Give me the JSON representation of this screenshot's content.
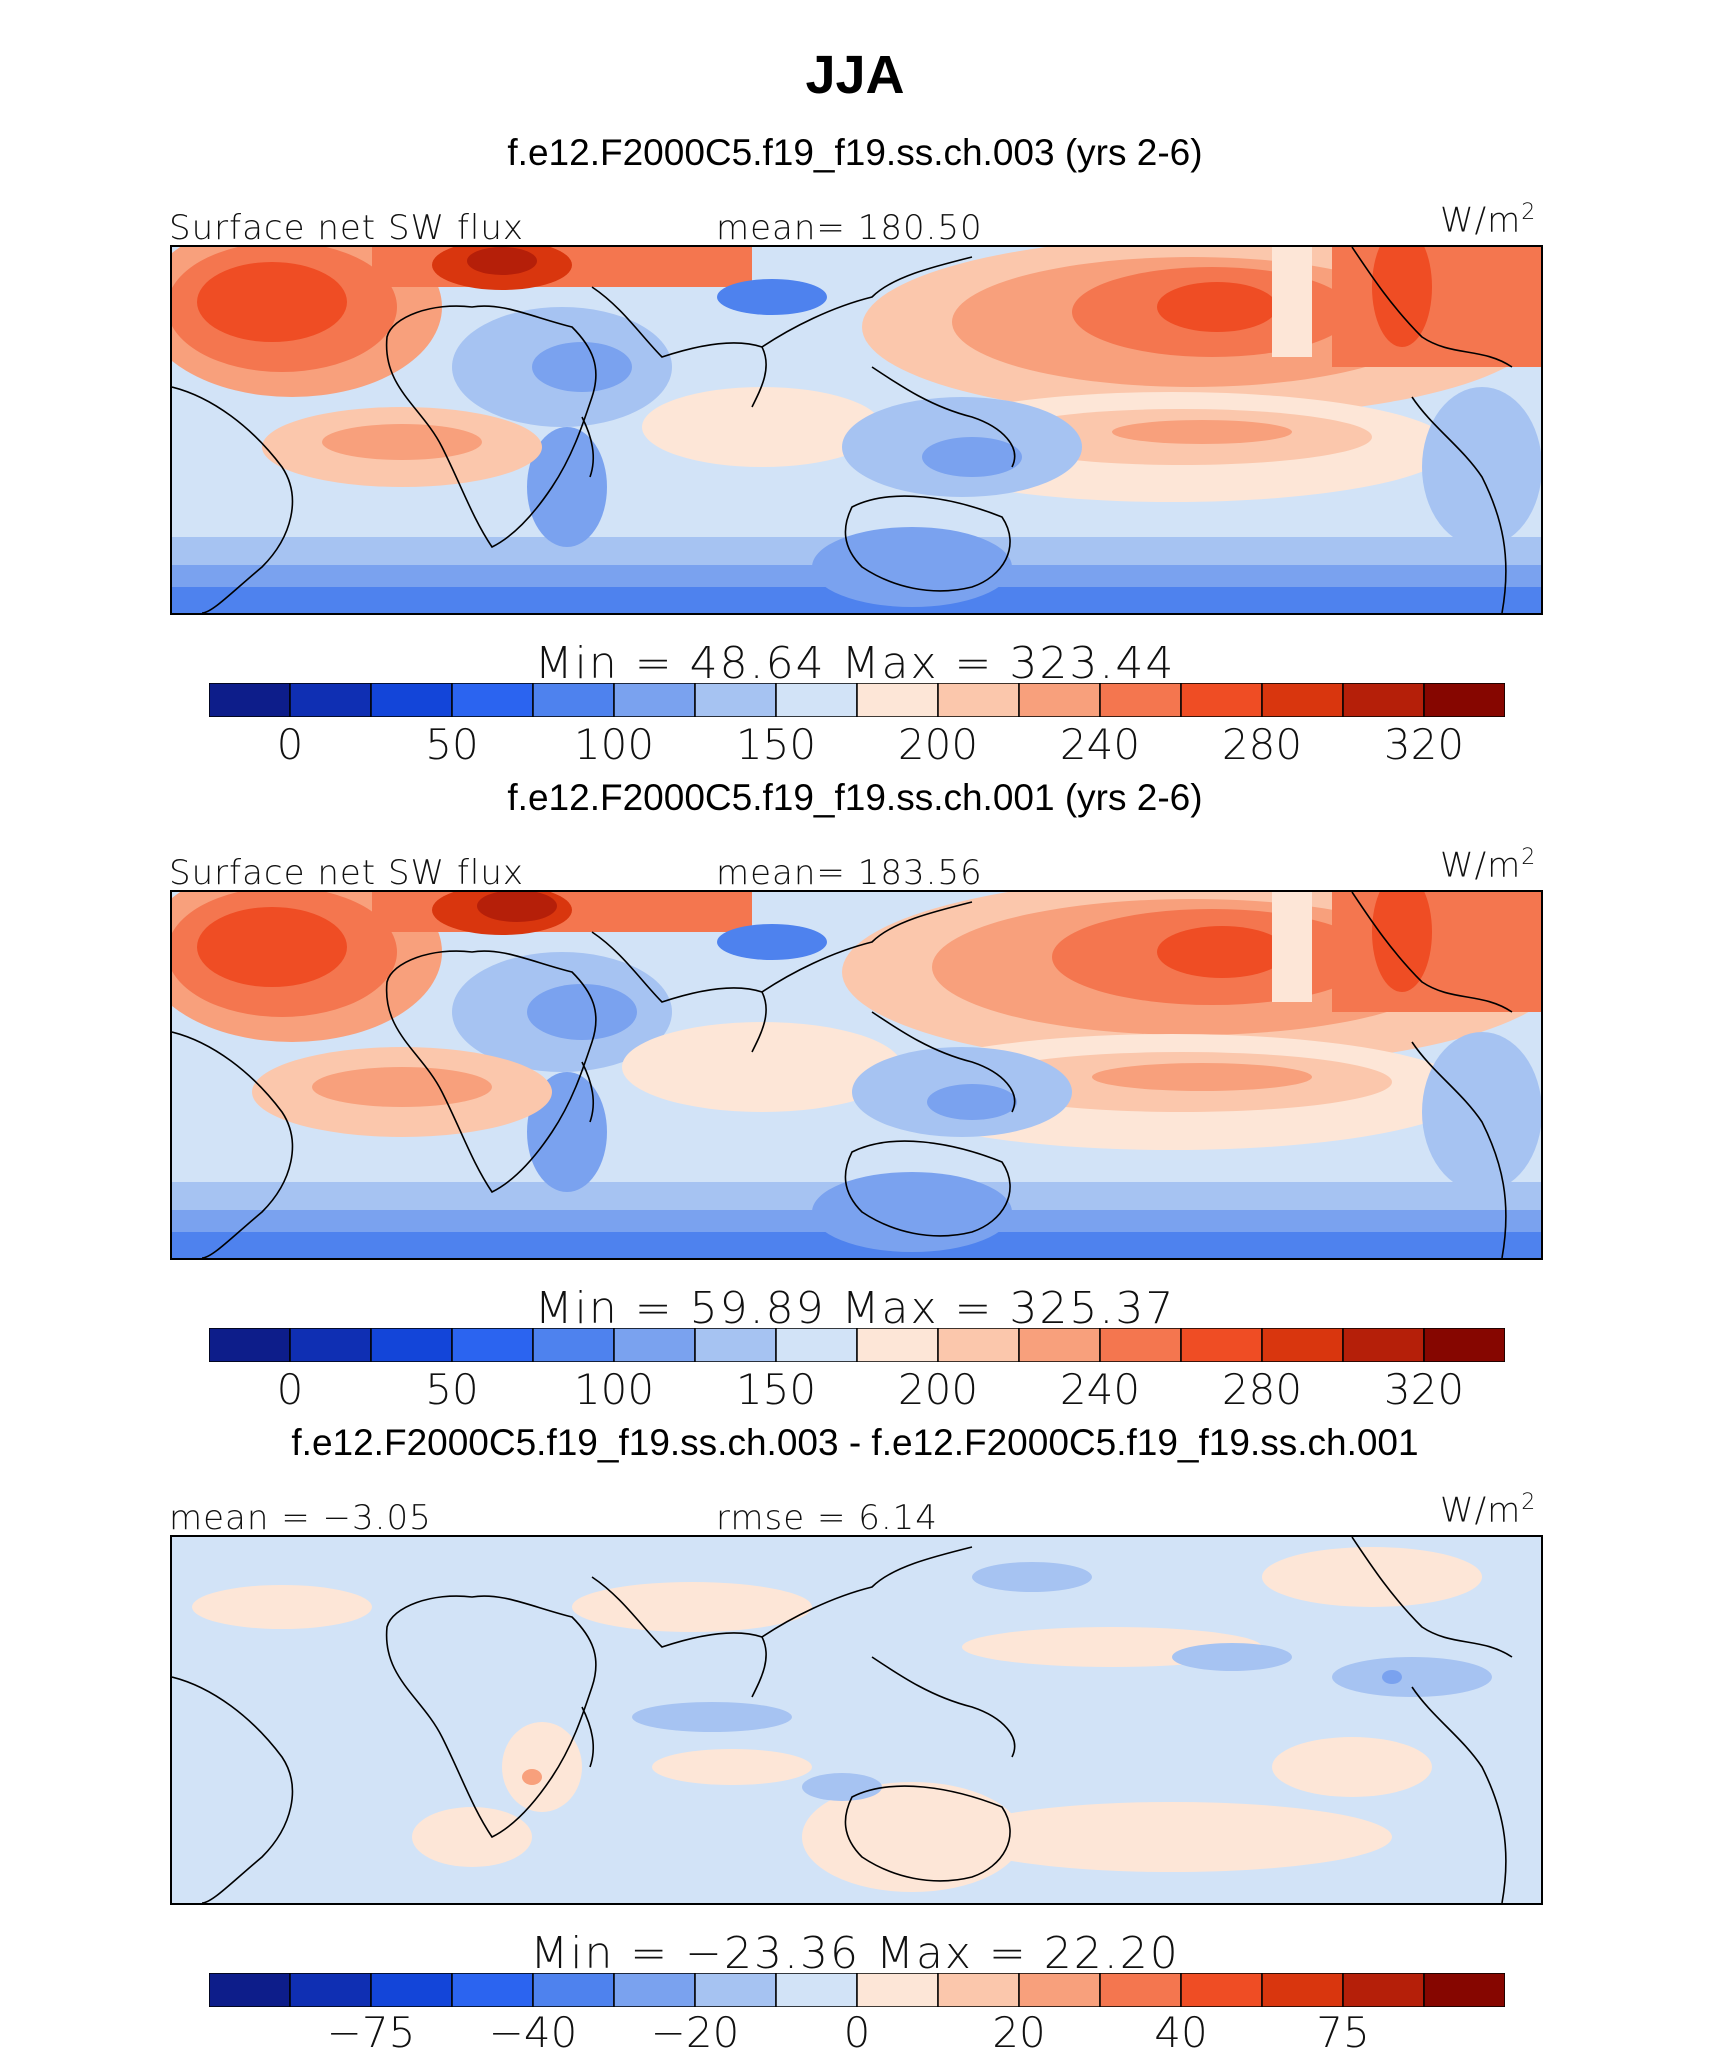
{
  "title": "JJA",
  "colors": {
    "abs_scale": [
      "#0d1d8a",
      "#0f2fb3",
      "#1345d9",
      "#2b64f0",
      "#4e82ee",
      "#7aa2ef",
      "#a6c3f2",
      "#d2e3f7",
      "#fde6d7",
      "#fbc7ac",
      "#f8a07c",
      "#f4764f",
      "#ef4d24",
      "#d9360e",
      "#b51f09",
      "#860600"
    ],
    "diff_scale": [
      "#0d1d8a",
      "#0f2fb3",
      "#1345d9",
      "#2b64f0",
      "#4e82ee",
      "#7aa2ef",
      "#a6c3f2",
      "#d2e3f7",
      "#fde6d7",
      "#fbc7ac",
      "#f8a07c",
      "#f4764f",
      "#ef4d24",
      "#d9360e",
      "#b51f09",
      "#860600"
    ]
  },
  "panels": [
    {
      "case_title": "f.e12.F2000C5.f19_f19.ss.ch.003 (yrs 2-6)",
      "left_label": "Surface net SW flux",
      "center_label": "mean=  180.50",
      "units": "W/m",
      "units_sup": "2",
      "minmax": "Min  =   48.64  Max  =  323.44",
      "ticks": [
        "0",
        "50",
        "100",
        "150",
        "200",
        "240",
        "280",
        "320"
      ],
      "scale": "abs_scale"
    },
    {
      "case_title": "f.e12.F2000C5.f19_f19.ss.ch.001 (yrs 2-6)",
      "left_label": "Surface net SW flux",
      "center_label": "mean=  183.56",
      "units": "W/m",
      "units_sup": "2",
      "minmax": "Min  =   59.89  Max  =  325.37",
      "ticks": [
        "0",
        "50",
        "100",
        "150",
        "200",
        "240",
        "280",
        "320"
      ],
      "scale": "abs_scale"
    },
    {
      "case_title": "f.e12.F2000C5.f19_f19.ss.ch.003 - f.e12.F2000C5.f19_f19.ss.ch.001",
      "left_label": "mean =   −3.05",
      "center_label": "rmse  =      6.14",
      "units": "W/m",
      "units_sup": "2",
      "minmax": "Min  =  −23.36  Max  =     22.20",
      "ticks": [
        "−75",
        "−40",
        "−20",
        "0",
        "20",
        "40",
        "75"
      ],
      "scale": "diff_scale"
    }
  ]
}
